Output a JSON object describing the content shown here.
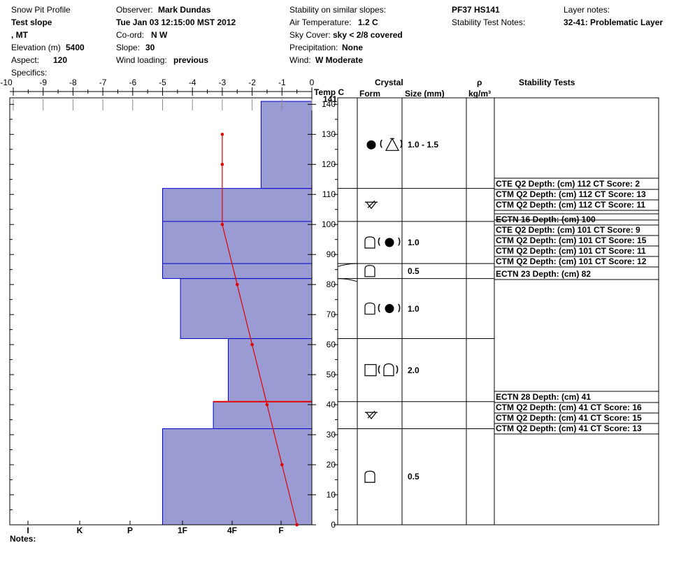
{
  "header": {
    "title": "Snow Pit Profile",
    "location": "Test slope",
    "region": ", MT",
    "elevation_label": "Elevation (m)",
    "elevation": "5400",
    "aspect_label": "Aspect:",
    "aspect": "120",
    "specifics_label": "Specifics:",
    "observer_label": "Observer:",
    "observer": "Mark Dundas",
    "datetime": "Tue Jan 03 12:15:00 MST 2012",
    "coord_label": "Co-ord:",
    "coord": "N  W",
    "slope_label": "Slope:",
    "slope": "30",
    "wind_loading_label": "Wind loading:",
    "wind_loading": "previous",
    "stability_similar_label": "Stability on similar slopes:",
    "air_temp_label": "Air Temperature:",
    "air_temp": "1.2 C",
    "sky_cover_label": "Sky Cover:",
    "sky_cover": "sky < 2/8 covered",
    "precip_label": "Precipitation:",
    "precip": "None",
    "wind_label": "Wind:",
    "wind": "W Moderate",
    "pit_id": "PF37 HS141",
    "stability_test_notes_label": "Stability Test Notes:",
    "layer_notes_label": "Layer notes:",
    "layer_notes": "32-41: Problematic Layer"
  },
  "columns": {
    "temp_label": "Temp C",
    "crystal_label": "Crystal",
    "form_label": "Form",
    "size_label": "Size (mm)",
    "rho_label": "ρ",
    "density_unit": "kg/m³",
    "stability_label": "Stability Tests"
  },
  "notes_label": "Notes:",
  "colors": {
    "layer_fill": "#9b9bd4",
    "layer_edge": "#0000c8",
    "temp_line": "#e00000"
  },
  "chart_data": {
    "type": "snow_profile",
    "temp_axis": {
      "min": -10,
      "max": 0,
      "ticks": [
        "-10",
        "-9",
        "-8",
        "-7",
        "-6",
        "-5",
        "-4",
        "-3",
        "-2",
        "-1",
        "0"
      ]
    },
    "height_axis": {
      "min": 0,
      "max": 141,
      "ticks": [
        0,
        10,
        20,
        30,
        40,
        50,
        60,
        70,
        80,
        90,
        100,
        110,
        120,
        130,
        140
      ],
      "hs_label": "141"
    },
    "hardness_ticks": [
      "I",
      "K",
      "P",
      "1F",
      "4F",
      "F"
    ],
    "hardness_layers": [
      {
        "bottom": 0,
        "top": 32,
        "temp_equiv": -5.0
      },
      {
        "bottom": 32,
        "top": 41,
        "temp_equiv": -3.3
      },
      {
        "bottom": 41,
        "top": 62,
        "temp_equiv": -2.8
      },
      {
        "bottom": 62,
        "top": 82,
        "temp_equiv": -4.4
      },
      {
        "bottom": 82,
        "top": 112,
        "temp_equiv": -5.0
      },
      {
        "bottom": 112,
        "top": 141,
        "temp_equiv": -1.7
      }
    ],
    "extra_boundaries": [
      101,
      87
    ],
    "critical_layer": 41,
    "temperature": [
      {
        "h": 0,
        "t": -0.5
      },
      {
        "h": 20,
        "t": -1.0
      },
      {
        "h": 40,
        "t": -1.5
      },
      {
        "h": 60,
        "t": -2.0
      },
      {
        "h": 80,
        "t": -2.5
      },
      {
        "h": 100,
        "t": -3.0
      },
      {
        "h": 120,
        "t": -3.0
      },
      {
        "h": 130,
        "t": -3.0
      }
    ],
    "crystal_layers": [
      {
        "bottom": 0,
        "top": 32,
        "form": "faceted",
        "size": "0.5"
      },
      {
        "bottom": 32,
        "top": 41,
        "form": "hoar",
        "size": ""
      },
      {
        "bottom": 41,
        "top": 62,
        "form": "square-facet",
        "size": "2.0"
      },
      {
        "bottom": 62,
        "top": 82,
        "form": "facet-round",
        "size": "1.0"
      },
      {
        "bottom": 82,
        "top": 87,
        "form": "faceted",
        "size": "0.5"
      },
      {
        "bottom": 87,
        "top": 101,
        "form": "facet-round",
        "size": "1.0"
      },
      {
        "bottom": 101,
        "top": 112,
        "form": "hoar",
        "size": ""
      },
      {
        "bottom": 112,
        "top": 141,
        "form": "round-depth",
        "size": "1.0 - 1.5"
      }
    ],
    "stability_groups": [
      {
        "depth": 112,
        "tests": [
          "CTE Q2 Depth: (cm) 112 CT Score: 2",
          "CTM Q2 Depth: (cm) 112 CT Score: 13",
          "CTM Q2 Depth: (cm) 112 CT Score: 11"
        ]
      },
      {
        "depth": 101,
        "tests": [
          "ECTN 16   Depth: (cm) 100",
          "CTE Q2 Depth: (cm) 101 CT Score: 9",
          "CTM Q2 Depth: (cm) 101 CT Score: 15",
          "CTM Q2 Depth: (cm) 101 CT Score: 11",
          "CTM Q2 Depth: (cm) 101 CT Score: 12"
        ]
      },
      {
        "depth": 82,
        "tests": [
          "ECTN 23   Depth: (cm) 82"
        ]
      },
      {
        "depth": 41,
        "tests": [
          "ECTN 28   Depth: (cm) 41",
          "CTM Q2 Depth: (cm) 41 CT Score: 16",
          "CTM Q2 Depth: (cm) 41 CT Score: 15",
          "CTM Q2 Depth: (cm) 41 CT Score: 13"
        ]
      }
    ]
  }
}
